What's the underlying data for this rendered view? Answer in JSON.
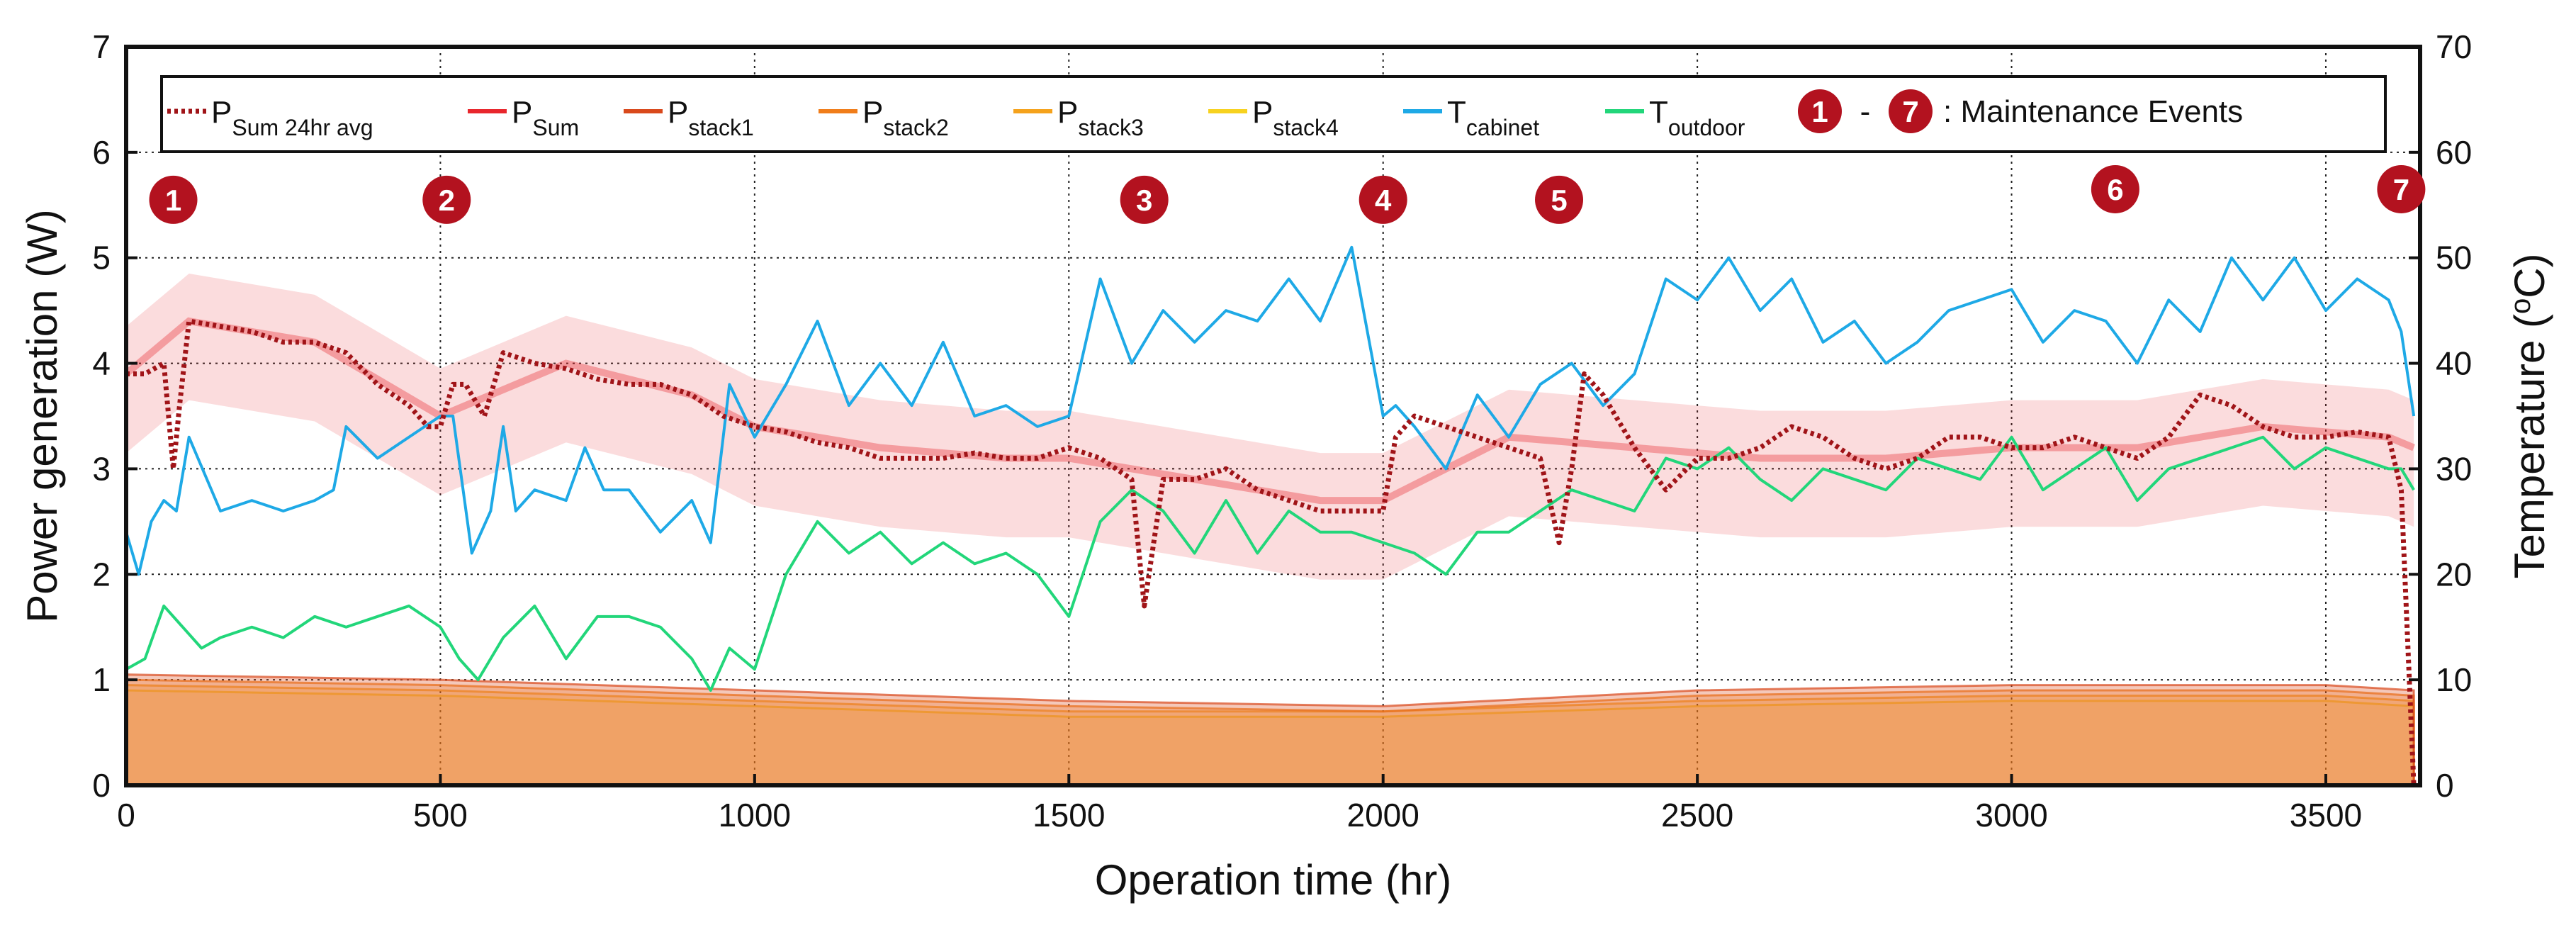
{
  "chart_data": {
    "type": "line",
    "title": "",
    "xlabel": "Operation time (hr)",
    "ylabel_left": "Power generation (W)",
    "ylabel_right": "Temperature (°C)",
    "ylabel_right_parts": [
      "Temperature (",
      "o",
      "C)"
    ],
    "xlim": [
      0,
      3650
    ],
    "ylim_left": [
      0,
      7
    ],
    "ylim_right": [
      0,
      70
    ],
    "x_ticks": [
      "0",
      "500",
      "1000",
      "1500",
      "2000",
      "2500",
      "3000",
      "3500"
    ],
    "y_left_ticks": [
      "0",
      "1",
      "2",
      "3",
      "4",
      "5",
      "6",
      "7"
    ],
    "y_right_ticks": [
      "0",
      "10",
      "20",
      "30",
      "40",
      "50",
      "60",
      "70"
    ],
    "grid": true,
    "legend_position": "top",
    "colors": {
      "p_sum_24hr_avg": "#a01418",
      "p_sum": "#e8262c",
      "p_stack1": "#d9491c",
      "p_stack2": "#f07d1a",
      "p_stack3": "#f5a21c",
      "p_stack4": "#f7d21f",
      "t_cabinet": "#1ea9e6",
      "t_outdoor": "#22d67a",
      "event_marker": "#b3121f"
    },
    "series": [
      {
        "key": "p_sum_24hr_avg",
        "name": "P",
        "sub": "Sum 24hr avg",
        "style": "dotted",
        "axis": "left",
        "x": [
          0,
          30,
          60,
          75,
          85,
          100,
          150,
          200,
          250,
          300,
          350,
          400,
          450,
          480,
          500,
          520,
          540,
          570,
          600,
          650,
          700,
          750,
          800,
          850,
          900,
          950,
          1000,
          1050,
          1100,
          1150,
          1200,
          1250,
          1300,
          1350,
          1400,
          1450,
          1500,
          1550,
          1600,
          1620,
          1650,
          1700,
          1750,
          1800,
          1850,
          1900,
          1950,
          2000,
          2020,
          2050,
          2100,
          2150,
          2200,
          2250,
          2280,
          2300,
          2320,
          2350,
          2400,
          2450,
          2500,
          2550,
          2600,
          2650,
          2700,
          2750,
          2800,
          2850,
          2900,
          2950,
          3000,
          3050,
          3100,
          3150,
          3200,
          3250,
          3300,
          3350,
          3400,
          3450,
          3500,
          3550,
          3600,
          3620,
          3640
        ],
        "y": [
          3.9,
          3.9,
          4.0,
          3.0,
          3.6,
          4.4,
          4.35,
          4.3,
          4.2,
          4.2,
          4.1,
          3.8,
          3.6,
          3.4,
          3.4,
          3.8,
          3.8,
          3.5,
          4.1,
          4.0,
          3.95,
          3.85,
          3.8,
          3.8,
          3.7,
          3.5,
          3.4,
          3.35,
          3.25,
          3.2,
          3.1,
          3.1,
          3.1,
          3.15,
          3.1,
          3.1,
          3.2,
          3.1,
          2.9,
          1.7,
          2.9,
          2.9,
          3.0,
          2.8,
          2.7,
          2.6,
          2.6,
          2.6,
          3.3,
          3.5,
          3.4,
          3.3,
          3.2,
          3.1,
          2.3,
          3.0,
          3.9,
          3.7,
          3.2,
          2.8,
          3.1,
          3.1,
          3.2,
          3.4,
          3.3,
          3.1,
          3.0,
          3.1,
          3.3,
          3.3,
          3.2,
          3.2,
          3.3,
          3.2,
          3.1,
          3.3,
          3.7,
          3.6,
          3.4,
          3.3,
          3.3,
          3.35,
          3.3,
          2.8,
          0.0
        ]
      },
      {
        "key": "p_sum",
        "name": "P",
        "sub": "Sum",
        "style": "band",
        "axis": "left",
        "x": [
          0,
          100,
          300,
          500,
          700,
          900,
          1000,
          1200,
          1400,
          1500,
          1700,
          1900,
          2000,
          2200,
          2400,
          2600,
          2800,
          3000,
          3200,
          3400,
          3600,
          3640
        ],
        "y": [
          3.9,
          4.4,
          4.2,
          3.5,
          4.0,
          3.7,
          3.4,
          3.2,
          3.1,
          3.1,
          2.9,
          2.7,
          2.7,
          3.3,
          3.2,
          3.1,
          3.1,
          3.2,
          3.2,
          3.4,
          3.3,
          3.2
        ]
      },
      {
        "key": "p_stack1",
        "name": "P",
        "sub": "stack1",
        "style": "band",
        "axis": "left",
        "x": [
          0,
          500,
          1000,
          1500,
          2000,
          2500,
          3000,
          3500,
          3640
        ],
        "y": [
          1.05,
          1.0,
          0.9,
          0.8,
          0.75,
          0.9,
          0.95,
          0.95,
          0.9
        ]
      },
      {
        "key": "p_stack2",
        "name": "P",
        "sub": "stack2",
        "style": "band",
        "axis": "left",
        "x": [
          0,
          500,
          1000,
          1500,
          2000,
          2500,
          3000,
          3500,
          3640
        ],
        "y": [
          1.0,
          0.95,
          0.85,
          0.75,
          0.7,
          0.85,
          0.9,
          0.9,
          0.85
        ]
      },
      {
        "key": "p_stack3",
        "name": "P",
        "sub": "stack3",
        "style": "band",
        "axis": "left",
        "x": [
          0,
          500,
          1000,
          1500,
          2000,
          2500,
          3000,
          3500,
          3640
        ],
        "y": [
          0.95,
          0.9,
          0.8,
          0.7,
          0.7,
          0.8,
          0.85,
          0.85,
          0.8
        ]
      },
      {
        "key": "p_stack4",
        "name": "P",
        "sub": "stack4",
        "style": "band",
        "axis": "left",
        "x": [
          0,
          500,
          1000,
          1500,
          2000,
          2500,
          3000,
          3500,
          3640
        ],
        "y": [
          0.9,
          0.85,
          0.75,
          0.65,
          0.65,
          0.75,
          0.8,
          0.8,
          0.75
        ]
      },
      {
        "key": "t_cabinet",
        "name": "T",
        "sub": "cabinet",
        "style": "solid",
        "axis": "right",
        "x": [
          0,
          20,
          40,
          60,
          80,
          100,
          150,
          200,
          250,
          300,
          330,
          350,
          400,
          450,
          500,
          520,
          550,
          580,
          600,
          620,
          650,
          700,
          730,
          760,
          800,
          850,
          900,
          930,
          960,
          1000,
          1050,
          1100,
          1150,
          1200,
          1250,
          1300,
          1350,
          1400,
          1450,
          1500,
          1550,
          1600,
          1650,
          1700,
          1750,
          1800,
          1850,
          1900,
          1950,
          2000,
          2020,
          2050,
          2100,
          2150,
          2200,
          2250,
          2300,
          2350,
          2400,
          2450,
          2500,
          2550,
          2600,
          2650,
          2700,
          2750,
          2800,
          2850,
          2900,
          2950,
          3000,
          3050,
          3100,
          3150,
          3200,
          3250,
          3300,
          3350,
          3400,
          3450,
          3500,
          3550,
          3600,
          3620,
          3640
        ],
        "y": [
          24,
          20,
          25,
          27,
          26,
          33,
          26,
          27,
          26,
          27,
          28,
          34,
          31,
          33,
          35,
          35,
          22,
          26,
          34,
          26,
          28,
          27,
          32,
          28,
          28,
          24,
          27,
          23,
          38,
          33,
          38,
          44,
          36,
          40,
          36,
          42,
          35,
          36,
          34,
          35,
          48,
          40,
          45,
          42,
          45,
          44,
          48,
          44,
          51,
          35,
          36,
          34,
          30,
          37,
          33,
          38,
          40,
          36,
          39,
          48,
          46,
          50,
          45,
          48,
          42,
          44,
          40,
          42,
          45,
          46,
          47,
          42,
          45,
          44,
          40,
          46,
          43,
          50,
          46,
          50,
          45,
          48,
          46,
          43,
          35
        ]
      },
      {
        "key": "t_outdoor",
        "name": "T",
        "sub": "outdoor",
        "style": "solid",
        "axis": "right",
        "x": [
          0,
          30,
          60,
          90,
          120,
          150,
          200,
          250,
          300,
          350,
          400,
          450,
          500,
          530,
          560,
          600,
          650,
          700,
          750,
          800,
          850,
          900,
          930,
          960,
          1000,
          1050,
          1100,
          1150,
          1200,
          1250,
          1300,
          1350,
          1400,
          1450,
          1500,
          1550,
          1600,
          1650,
          1700,
          1750,
          1800,
          1850,
          1900,
          1950,
          2000,
          2050,
          2100,
          2150,
          2200,
          2250,
          2300,
          2350,
          2400,
          2450,
          2500,
          2550,
          2600,
          2650,
          2700,
          2750,
          2800,
          2850,
          2900,
          2950,
          3000,
          3050,
          3100,
          3150,
          3200,
          3250,
          3300,
          3350,
          3400,
          3450,
          3500,
          3550,
          3600,
          3620,
          3640
        ],
        "y": [
          11,
          12,
          17,
          15,
          13,
          14,
          15,
          14,
          16,
          15,
          16,
          17,
          15,
          12,
          10,
          14,
          17,
          12,
          16,
          16,
          15,
          12,
          9,
          13,
          11,
          20,
          25,
          22,
          24,
          21,
          23,
          21,
          22,
          20,
          16,
          25,
          28,
          26,
          22,
          27,
          22,
          26,
          24,
          24,
          23,
          22,
          20,
          24,
          24,
          26,
          28,
          27,
          26,
          31,
          30,
          32,
          29,
          27,
          30,
          29,
          28,
          31,
          30,
          29,
          33,
          28,
          30,
          32,
          27,
          30,
          31,
          32,
          33,
          30,
          32,
          31,
          30,
          30,
          28
        ]
      }
    ],
    "maintenance_events": {
      "labels": [
        "1",
        "2",
        "3",
        "4",
        "5",
        "6",
        "7"
      ],
      "x": [
        75,
        510,
        1620,
        2000,
        2280,
        3165,
        3620
      ],
      "y": [
        5.55,
        5.55,
        5.55,
        5.55,
        5.55,
        5.65,
        5.65
      ]
    },
    "legend": {
      "entries": [
        {
          "base": "P",
          "sub": "Sum 24hr avg"
        },
        {
          "base": "P",
          "sub": "Sum"
        },
        {
          "base": "P",
          "sub": "stack1"
        },
        {
          "base": "P",
          "sub": "stack2"
        },
        {
          "base": "P",
          "sub": "stack3"
        },
        {
          "base": "P",
          "sub": "stack4"
        },
        {
          "base": "T",
          "sub": "cabinet"
        },
        {
          "base": "T",
          "sub": "outdoor"
        }
      ],
      "events_start": "1",
      "events_sep": "-",
      "events_end": "7",
      "events_text": ": Maintenance Events"
    }
  }
}
